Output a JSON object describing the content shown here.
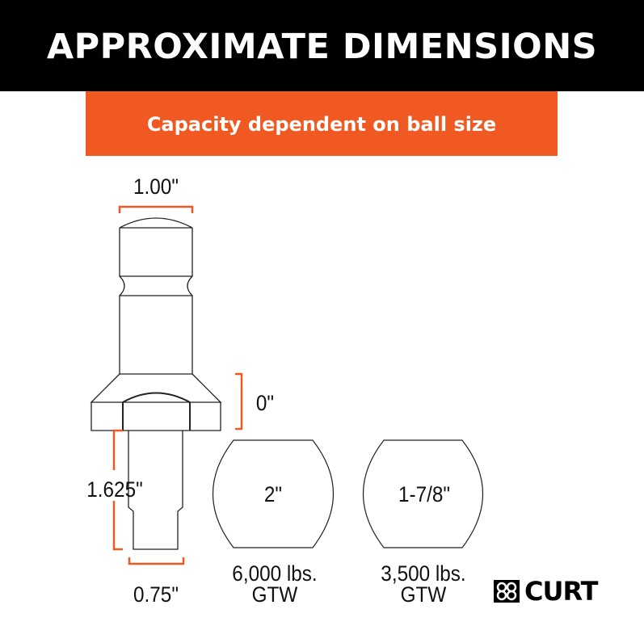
{
  "header": {
    "title": "APPROXIMATE DIMENSIONS"
  },
  "subheader": {
    "text": "Capacity dependent on ball size"
  },
  "accent_color": "#f05a22",
  "shank": {
    "top_width": "1.00\"",
    "rise": "0\"",
    "shank_length": "1.625\"",
    "shank_diameter": "0.75\""
  },
  "balls": [
    {
      "size": "2\"",
      "capacity": "6,000 lbs.",
      "rating": "GTW"
    },
    {
      "size": "1-7/8\"",
      "capacity": "3,500 lbs.",
      "rating": "GTW"
    }
  ],
  "brand": {
    "name": "CURT"
  }
}
